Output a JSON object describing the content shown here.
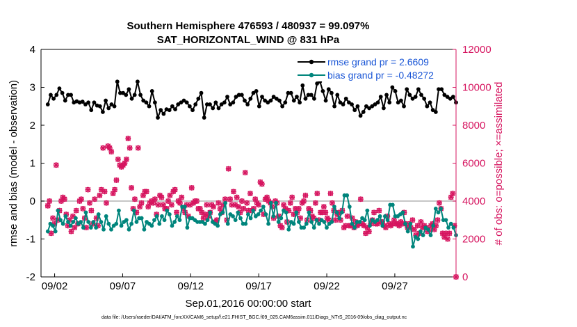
{
  "chart_data": {
    "type": "line",
    "title": "Southern Hemisphere 476593 / 480937 = 99.097%",
    "subtitle": "SAT_HORIZONTAL_WIND @ 831 hPa",
    "xlabel": "Sep.01,2016 00:00:00 start",
    "ylabel_left": "rmse and bias (model - observation)",
    "ylabel_right": "# of obs: o=possible; ×=assimilated",
    "ylim_left": [
      -2,
      4
    ],
    "ylim_right": [
      0,
      12000
    ],
    "xlim": [
      0,
      30.5
    ],
    "yticks_left": [
      "-2",
      "-1",
      "0",
      "1",
      "2",
      "3",
      "4"
    ],
    "yticks_right": [
      "0",
      "2000",
      "4000",
      "6000",
      "8000",
      "10000",
      "12000"
    ],
    "xticks": [
      {
        "x": 1,
        "label": "09/02"
      },
      {
        "x": 6,
        "label": "09/07"
      },
      {
        "x": 11,
        "label": "09/12"
      },
      {
        "x": 16,
        "label": "09/17"
      },
      {
        "x": 21,
        "label": "09/22"
      },
      {
        "x": 26,
        "label": "09/27"
      }
    ],
    "legend": [
      "rmse grand pr = 2.6609",
      "bias grand pr = -0.48272"
    ],
    "footnote": "data file: /Users/raeder/DAI/ATM_forcXX/CAM6_setup/f.e21.FHIST_BGC.f09_025.CAM6assim.011/Diags_NTrS_2016-09/obs_diag_output.nc",
    "colors": {
      "rmse": "#000000",
      "bias": "#00857c",
      "obs": "#d6145f",
      "zero_line": "#b4b4b4",
      "legend_text": "#1a56d6"
    },
    "series": [
      {
        "name": "rmse",
        "values": [
          2.55,
          2.8,
          2.7,
          2.8,
          2.97,
          2.85,
          2.65,
          2.8,
          2.8,
          2.6,
          2.63,
          2.6,
          2.62,
          2.55,
          2.6,
          2.4,
          2.6,
          2.52,
          2.5,
          2.35,
          2.65,
          2.45,
          2.55,
          2.5,
          3.15,
          2.85,
          2.85,
          2.8,
          2.95,
          2.7,
          2.8,
          3.15,
          2.8,
          2.65,
          2.6,
          2.5,
          2.9,
          2.6,
          2.2,
          2.4,
          2.3,
          2.42,
          2.4,
          2.5,
          2.42,
          2.55,
          2.6,
          2.65,
          2.6,
          2.5,
          2.4,
          2.55,
          2.7,
          2.85,
          2.2,
          2.55,
          2.55,
          2.45,
          2.6,
          2.45,
          2.55,
          2.6,
          2.75,
          2.55,
          2.6,
          2.75,
          2.8,
          2.8,
          2.65,
          2.55,
          2.7,
          2.85,
          2.9,
          2.5,
          2.75,
          2.65,
          2.6,
          2.65,
          2.75,
          2.7,
          2.65,
          2.5,
          2.6,
          2.85,
          2.85,
          2.65,
          2.75,
          2.6,
          3.05,
          2.7,
          2.8,
          2.8,
          2.7,
          3.1,
          3.15,
          2.9,
          2.65,
          2.95,
          2.85,
          2.5,
          2.8,
          2.6,
          2.55,
          2.7,
          2.6,
          2.55,
          2.4,
          2.5,
          2.25,
          2.35,
          2.5,
          2.45,
          2.5,
          2.55,
          2.6,
          2.75,
          2.45,
          2.8,
          2.6,
          3.0,
          2.9,
          2.6,
          2.65,
          2.5,
          2.95,
          2.8,
          2.7,
          2.75,
          2.95,
          2.8,
          2.7,
          2.5,
          2.6,
          2.4,
          2.35,
          2.95,
          2.95,
          2.8,
          2.75,
          2.7,
          2.75,
          2.6
        ]
      },
      {
        "name": "bias",
        "values": [
          -0.8,
          -0.6,
          -0.65,
          -0.8,
          -0.25,
          -0.5,
          -0.6,
          -0.4,
          -0.55,
          -0.65,
          -0.55,
          -0.45,
          -0.6,
          -0.55,
          -0.7,
          -0.3,
          -0.55,
          -0.7,
          -0.55,
          -0.7,
          -0.35,
          -0.55,
          -0.75,
          -0.4,
          -0.6,
          -0.75,
          -0.65,
          -0.6,
          -0.25,
          -0.65,
          -0.55,
          -0.5,
          -0.75,
          -0.6,
          -0.25,
          -0.55,
          -0.45,
          -0.45,
          -0.75,
          -0.55,
          -0.6,
          -0.65,
          -0.5,
          -0.4,
          -0.6,
          -0.4,
          -0.5,
          -0.25,
          -0.35,
          -0.65,
          -0.55,
          -0.4,
          -0.5,
          -0.15,
          -0.15,
          -0.7,
          -0.45,
          -0.45,
          -0.5,
          -0.55,
          -0.55,
          -0.55,
          -0.6,
          -0.5,
          -0.3,
          -0.55,
          -0.6,
          -0.65,
          -0.35,
          -0.3,
          -0.05,
          -0.6,
          -0.35,
          -0.4,
          -0.5,
          -0.3,
          -0.45,
          -0.6,
          -0.6,
          -0.35,
          -0.45,
          -0.25,
          -0.4,
          -0.35,
          -0.25,
          -0.15,
          -0.35,
          -0.6,
          -0.05,
          -0.4,
          -0.05,
          -0.55,
          -0.45,
          -0.25,
          -0.3,
          -0.75,
          -0.55,
          -0.6,
          -0.3,
          -0.55,
          -0.7,
          -0.7,
          -0.6,
          -0.3,
          -0.55,
          -0.7,
          -0.5,
          -0.6,
          -0.5,
          -0.55,
          -0.7,
          -0.6,
          -0.55,
          -0.15,
          -0.3,
          -0.45,
          -0.3,
          0.15,
          0.15,
          -0.15,
          -0.6,
          -0.7,
          -0.55,
          -0.55,
          -0.45,
          -0.5,
          -0.25,
          -0.65,
          -0.5,
          -0.55,
          -0.5,
          -0.4,
          -0.65,
          -0.4,
          -0.5,
          -0.1,
          -0.1,
          -0.4,
          -0.4,
          -0.35,
          -0.3,
          -0.6,
          -0.8,
          -0.6,
          -1.2,
          -0.95,
          -1.0,
          -0.8,
          -0.9,
          -0.7,
          -0.75,
          -0.9,
          -0.65,
          -0.2,
          -0.3,
          -0.2,
          -0.5,
          -0.5,
          -0.7,
          -0.6,
          -0.7,
          -0.9
        ]
      },
      {
        "name": "obs_possible",
        "values": [
          3750,
          4000,
          2300,
          3100,
          2800,
          5900,
          3000,
          3500,
          4000,
          4200,
          4100,
          3300,
          2700,
          3000,
          2400,
          3200,
          2600,
          3500,
          2800,
          4000,
          4100,
          3600,
          3100,
          2600,
          4600,
          3900,
          3500,
          2800,
          4100,
          3100,
          2700,
          4300,
          4600,
          6800,
          4500,
          3900,
          6900,
          6800,
          6600,
          4400,
          4600,
          5100,
          6200,
          5900,
          5800,
          5900,
          6000,
          6200,
          7300,
          6800,
          4700,
          3600,
          4100,
          3400,
          6800,
          3700,
          3900,
          4300,
          4500,
          4500,
          3700,
          3900,
          4000,
          3900,
          4100,
          3300,
          3800,
          4300,
          4200,
          3800,
          3600,
          3600,
          4000,
          4300,
          3800,
          4500,
          4600,
          3400,
          4000,
          3900,
          4200,
          3600,
          3400,
          3800,
          3200,
          3800,
          4700,
          3900,
          4000,
          4000,
          3600,
          3600,
          3400,
          3100,
          3300,
          3800,
          3200,
          3400,
          3800,
          3700,
          2900,
          3000,
          3900,
          3600,
          3400,
          3800,
          4100,
          3000,
          5700,
          4100,
          3800,
          4500,
          3800,
          4200,
          3700,
          3400,
          4000,
          3600,
          5500,
          3900,
          3500,
          4400,
          3500,
          3600,
          4100,
          3900,
          3800,
          5000,
          4900,
          3300,
          4100,
          4200,
          4000,
          3900,
          3700,
          3100,
          4000,
          3900,
          3200,
          2700,
          2600,
          3800,
          3600,
          2900,
          3500,
          3900,
          4200,
          3300,
          3600,
          3400,
          3600,
          3100,
          3900,
          4000,
          4300,
          3000,
          3600,
          3500,
          3200,
          3100,
          3900,
          4400,
          3000,
          3400,
          3400,
          3700,
          3400,
          3100,
          3000,
          4400,
          3900,
          3500,
          3000,
          3300,
          3400,
          3000,
          3500,
          2600,
          2700,
          3200,
          2700,
          2700,
          3100,
          2600,
          2900,
          2700,
          2800,
          4100,
          2800,
          2700,
          2300,
          2600,
          2400,
          2800,
          3000,
          3400,
          2800,
          2800,
          3500,
          2900,
          2900,
          2700,
          2600,
          3200,
          2800,
          2700,
          2800,
          3000,
          2800,
          2800,
          2700,
          2900,
          2800,
          3400,
          2800,
          2600,
          2800,
          2600,
          3000,
          2500,
          2200,
          2700,
          2300,
          2900,
          2600,
          2700,
          2600,
          2400,
          2500,
          2700,
          2800,
          2500,
          2700,
          3000,
          3900,
          3600,
          2300,
          2100,
          2300,
          2000,
          2300,
          4200,
          4400,
          2700,
          0
        ]
      },
      {
        "name": "obs_assimilated",
        "values": [
          3750,
          4000,
          2300,
          3100,
          2800,
          5900,
          3000,
          3500,
          4000,
          4200,
          4100,
          3300,
          2700,
          3000,
          2400,
          3200,
          2600,
          3500,
          2800,
          4000,
          4100,
          3600,
          3100,
          2600,
          4600,
          3900,
          3500,
          2800,
          4100,
          3100,
          2700,
          4300,
          4600,
          6800,
          4500,
          3900,
          6900,
          6800,
          6600,
          4400,
          4600,
          5100,
          6200,
          5900,
          5800,
          5900,
          6000,
          6200,
          7300,
          6800,
          4700,
          3600,
          4100,
          3400,
          6800,
          3700,
          3900,
          4300,
          4500,
          4500,
          3700,
          3900,
          4000,
          3900,
          4100,
          3300,
          3800,
          4300,
          4200,
          3800,
          3600,
          3600,
          4000,
          4300,
          3800,
          4500,
          4600,
          3400,
          4000,
          3900,
          4200,
          3600,
          3400,
          3800,
          3200,
          3800,
          4700,
          3900,
          4000,
          4000,
          3600,
          3600,
          3400,
          3100,
          3300,
          3800,
          3200,
          3400,
          3800,
          3700,
          2900,
          3000,
          3900,
          3600,
          3400,
          3800,
          4100,
          3000,
          5700,
          4100,
          3800,
          4500,
          3800,
          4200,
          3700,
          3400,
          4000,
          3600,
          5500,
          3900,
          3500,
          4400,
          3500,
          3600,
          4100,
          3900,
          3800,
          5000,
          4900,
          3300,
          4100,
          4200,
          4000,
          3900,
          3700,
          3100,
          4000,
          3900,
          3200,
          2700,
          2600,
          3800,
          3600,
          2900,
          3500,
          3900,
          4200,
          3300,
          3600,
          3400,
          3600,
          3100,
          3900,
          4000,
          4300,
          3000,
          3600,
          3500,
          3200,
          3100,
          3900,
          4400,
          3000,
          3400,
          3400,
          3700,
          3400,
          3100,
          3000,
          4400,
          3900,
          3500,
          3000,
          3300,
          3400,
          3000,
          3500,
          2600,
          2700,
          3200,
          2700,
          2700,
          3100,
          2600,
          2900,
          2700,
          2800,
          4100,
          2800,
          2700,
          2300,
          2600,
          2400,
          2800,
          3000,
          3400,
          2800,
          2800,
          3500,
          2900,
          2900,
          2700,
          2600,
          3200,
          2800,
          2700,
          2800,
          3000,
          2800,
          2800,
          2700,
          2900,
          2800,
          3400,
          2800,
          2600,
          2800,
          2600,
          3000,
          2500,
          2200,
          2700,
          2300,
          2900,
          2600,
          2700,
          2600,
          2400,
          2500,
          2700,
          2800,
          2500,
          2700,
          3000,
          3900,
          3600,
          2300,
          2100,
          2300,
          2000,
          2300,
          4200,
          4400,
          2700,
          0
        ]
      }
    ]
  }
}
